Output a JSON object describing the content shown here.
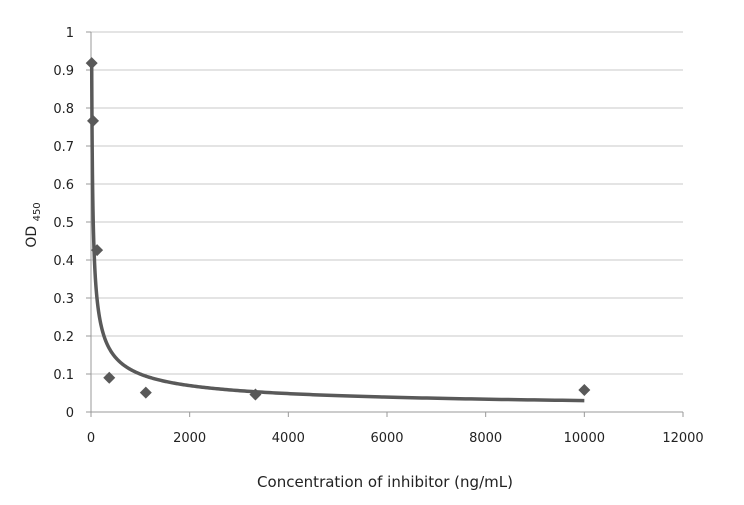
{
  "chart_data": {
    "type": "scatter",
    "title": "",
    "xlabel": "Concentration of inhibitor (ng/mL)",
    "ylabel": "OD",
    "ylabel_subscript": "450",
    "xlim": [
      0,
      12000
    ],
    "ylim": [
      0,
      1
    ],
    "xticks": [
      "0",
      "2000",
      "4000",
      "6000",
      "8000",
      "10000",
      "12000"
    ],
    "yticks": [
      "0",
      "0.1",
      "0.2",
      "0.3",
      "0.4",
      "0.5",
      "0.6",
      "0.7",
      "0.8",
      "0.9",
      "1"
    ],
    "grid": "horizontal",
    "marker": "diamond",
    "color": "#595959",
    "gridColor": "#c8c8c8",
    "trendline": "power",
    "points": [
      {
        "x": 13.7,
        "y": 0.918
      },
      {
        "x": 41.2,
        "y": 0.766
      },
      {
        "x": 123.5,
        "y": 0.426
      },
      {
        "x": 370,
        "y": 0.09
      },
      {
        "x": 1111,
        "y": 0.051
      },
      {
        "x": 3333,
        "y": 0.046
      },
      {
        "x": 10000,
        "y": 0.058
      }
    ]
  }
}
